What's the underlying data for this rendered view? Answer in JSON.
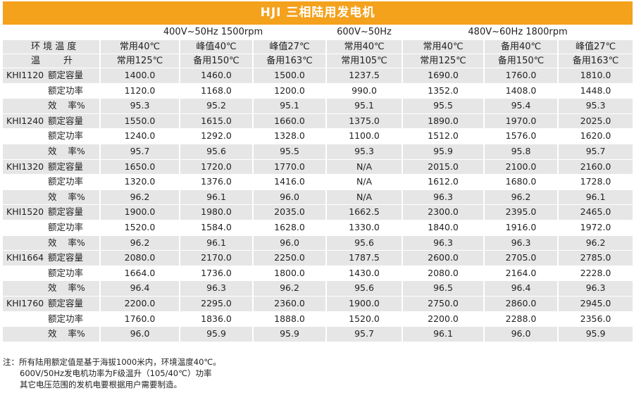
{
  "title": "HJI 三相陆用发电机",
  "freq_headers": [
    "400V~50Hz 1500rpm",
    "600V~50Hz",
    "480V~60Hz 1800rpm"
  ],
  "row_labels": {
    "ambient": "环 境 温 度",
    "rise": "温        升"
  },
  "columns": [
    {
      "ambient": "常用40℃",
      "rise": "常用125℃"
    },
    {
      "ambient": "峰值40℃",
      "rise": "备用150℃"
    },
    {
      "ambient": "峰值27℃",
      "rise": "备用163℃"
    },
    {
      "ambient": "常用40℃",
      "rise": "常用105℃"
    },
    {
      "ambient": "常用40℃",
      "rise": "常用125℃"
    },
    {
      "ambient": "备用40℃",
      "rise": "备用150℃"
    },
    {
      "ambient": "峰值27℃",
      "rise": "备用163℃"
    }
  ],
  "metric_labels": [
    "额定容量",
    "额定功率",
    "效    率%"
  ],
  "models": [
    {
      "name": "KHI1120",
      "rows": [
        [
          "1400.0",
          "1460.0",
          "1500.0",
          "1237.5",
          "1690.0",
          "1760.0",
          "1810.0"
        ],
        [
          "1120.0",
          "1168.0",
          "1200.0",
          "990.0",
          "1352.0",
          "1408.0",
          "1448.0"
        ],
        [
          "95.3",
          "95.2",
          "95.1",
          "95.1",
          "95.5",
          "95.4",
          "95.3"
        ]
      ]
    },
    {
      "name": "KHI1240",
      "rows": [
        [
          "1550.0",
          "1615.0",
          "1660.0",
          "1375.0",
          "1890.0",
          "1970.0",
          "2025.0"
        ],
        [
          "1240.0",
          "1292.0",
          "1328.0",
          "1100.0",
          "1512.0",
          "1576.0",
          "1620.0"
        ],
        [
          "95.7",
          "95.6",
          "95.5",
          "95.3",
          "95.9",
          "95.8",
          "95.7"
        ]
      ]
    },
    {
      "name": "KHI1320",
      "rows": [
        [
          "1650.0",
          "1720.0",
          "1770.0",
          "N/A",
          "2015.0",
          "2100.0",
          "2160.0"
        ],
        [
          "1320.0",
          "1376.0",
          "1416.0",
          "N/A",
          "1612.0",
          "1680.0",
          "1728.0"
        ],
        [
          "96.2",
          "96.1",
          "96.0",
          "N/A",
          "96.3",
          "96.2",
          "96.1"
        ]
      ]
    },
    {
      "name": "KHI1520",
      "rows": [
        [
          "1900.0",
          "1980.0",
          "2035.0",
          "1662.5",
          "2300.0",
          "2395.0",
          "2465.0"
        ],
        [
          "1520.0",
          "1584.0",
          "1628.0",
          "1330.0",
          "1840.0",
          "1916.0",
          "1972.0"
        ],
        [
          "96.2",
          "96.1",
          "96.0",
          "95.6",
          "96.3",
          "96.3",
          "96.2"
        ]
      ]
    },
    {
      "name": "KHI1664",
      "rows": [
        [
          "2080.0",
          "2170.0",
          "2250.0",
          "1787.5",
          "2600.0",
          "2705.0",
          "2785.0"
        ],
        [
          "1664.0",
          "1736.0",
          "1800.0",
          "1430.0",
          "2080.0",
          "2164.0",
          "2228.0"
        ],
        [
          "96.4",
          "96.3",
          "96.2",
          "95.6",
          "96.5",
          "96.4",
          "96.3"
        ]
      ]
    },
    {
      "name": "KHI1760",
      "rows": [
        [
          "2200.0",
          "2295.0",
          "2360.0",
          "1900.0",
          "2750.0",
          "2860.0",
          "2945.0"
        ],
        [
          "1760.0",
          "1836.0",
          "1888.0",
          "1520.0",
          "2200.0",
          "2288.0",
          "2356.0"
        ],
        [
          "96.0",
          "95.9",
          "95.9",
          "95.7",
          "96.1",
          "96.0",
          "95.9"
        ]
      ]
    }
  ],
  "notes": [
    "注：所有陆用额定值是基于海拔1000米内，环境温度40℃。",
    "600V/50Hz发电机功率为F级温升（105/40℃）功率",
    "其它电压范围的发机电要根据用户需要制造。"
  ],
  "colors": {
    "title_bar": "#f4a11c",
    "row_gray": "#e6e6e6",
    "row_white": "#ffffff"
  }
}
